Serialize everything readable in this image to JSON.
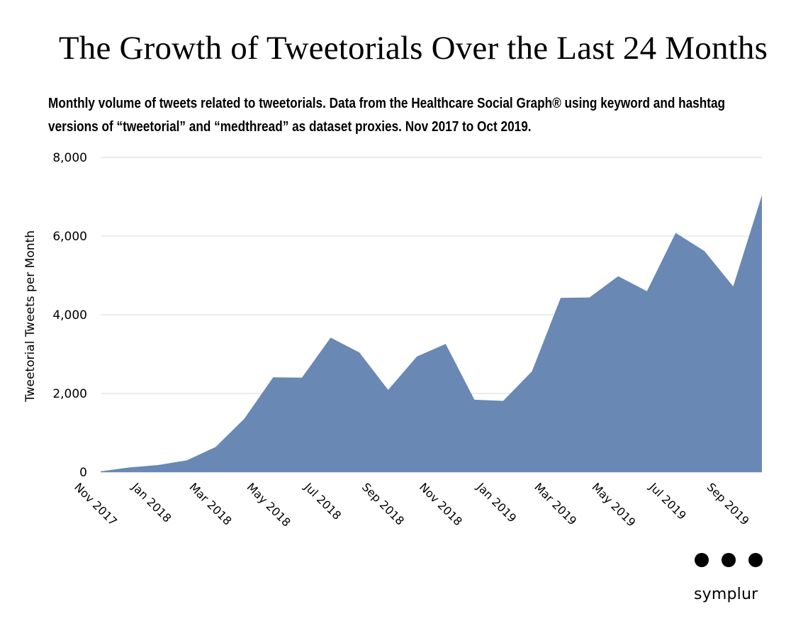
{
  "chart_data": {
    "type": "area",
    "title": "The Growth of Tweetorials Over the Last 24 Months",
    "subtitle": "Monthly volume of tweets related to tweetorials. Data from the Healthcare Social Graph® using keyword and hashtag versions of “tweetorial” and “medthread” as dataset proxies. Nov 2017 to Oct 2019.",
    "ylabel": "Tweetorial Tweets per Month",
    "xlabel": "",
    "ylim": [
      0,
      8000
    ],
    "yticks": [
      0,
      2000,
      4000,
      6000,
      8000
    ],
    "ytick_labels": [
      "0",
      "2,000",
      "4,000",
      "6,000",
      "8,000"
    ],
    "x": [
      "Nov 2017",
      "Dec 2017",
      "Jan 2018",
      "Feb 2018",
      "Mar 2018",
      "Apr 2018",
      "May 2018",
      "Jun 2018",
      "Jul 2018",
      "Aug 2018",
      "Sep 2018",
      "Oct 2018",
      "Nov 2018",
      "Dec 2018",
      "Jan 2019",
      "Feb 2019",
      "Mar 2019",
      "Apr 2019",
      "May 2019",
      "Jun 2019",
      "Jul 2019",
      "Aug 2019",
      "Sep 2019",
      "Oct 2019"
    ],
    "xtick_labels": [
      "Nov 2017",
      "Jan 2018",
      "Mar 2018",
      "May 2018",
      "Jul 2018",
      "Sep 2018",
      "Nov 2018",
      "Jan 2019",
      "Mar 2019",
      "May 2019",
      "Jul 2019",
      "Sep 2019"
    ],
    "values": [
      20,
      120,
      180,
      300,
      640,
      1360,
      2410,
      2400,
      3420,
      3040,
      2090,
      2940,
      3260,
      1840,
      1810,
      2560,
      4430,
      4440,
      4980,
      4600,
      6080,
      5620,
      4720,
      7040
    ],
    "color": "#6a88b4",
    "gridline_color": "#d8d8d8",
    "grid": true,
    "legend": "none"
  },
  "brand": {
    "name": "symplur",
    "icon": "three-dots-icon"
  }
}
